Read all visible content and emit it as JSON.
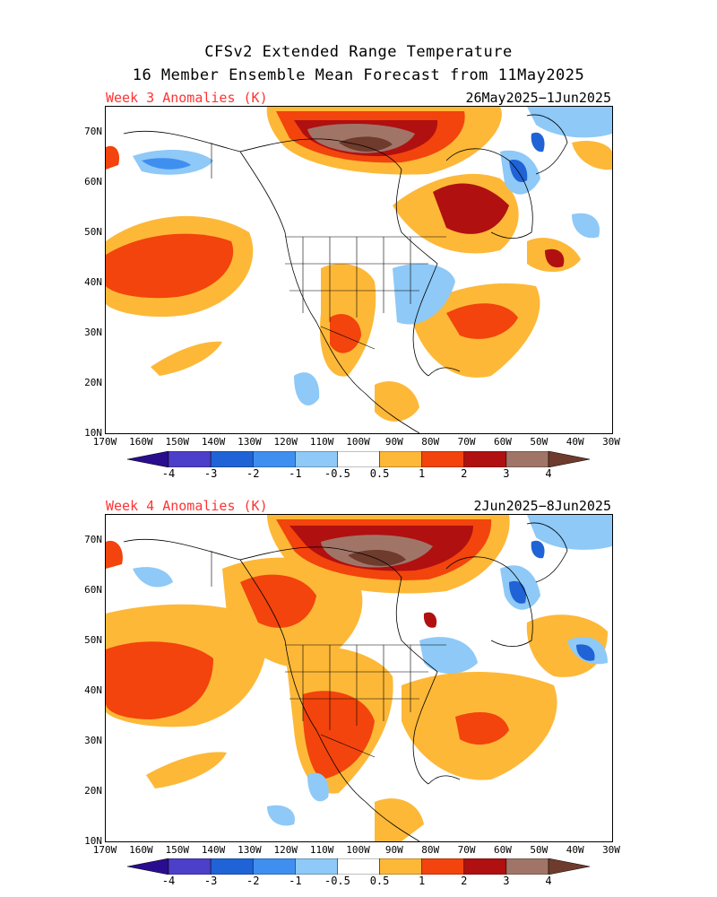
{
  "title": {
    "line1": "CFSv2 Extended Range Temperature",
    "line2": "16 Member Ensemble Mean Forecast from 11May2025"
  },
  "axes": {
    "lat_labels": [
      "70N",
      "60N",
      "50N",
      "40N",
      "30N",
      "20N",
      "10N"
    ],
    "lon_labels": [
      "170W",
      "160W",
      "150W",
      "140W",
      "130W",
      "120W",
      "110W",
      "100W",
      "90W",
      "80W",
      "70W",
      "60W",
      "50W",
      "40W",
      "30W"
    ]
  },
  "colorbar": {
    "labels": [
      "-4",
      "-3",
      "-2",
      "-1",
      "-0.5",
      "0.5",
      "1",
      "2",
      "3",
      "4"
    ],
    "colors": [
      "#2a0d8e",
      "#4c3fc9",
      "#1f63d6",
      "#3f8ff0",
      "#8ec9f7",
      "#ffffff",
      "#fdb838",
      "#f2440c",
      "#b01010",
      "#a07568",
      "#6e3b2c"
    ]
  },
  "panels": [
    {
      "label": "Week 3 Anomalies (K)",
      "dates": "26May2025−1Jun2025"
    },
    {
      "label": "Week 4 Anomalies (K)",
      "dates": "2Jun2025−8Jun2025"
    }
  ]
}
